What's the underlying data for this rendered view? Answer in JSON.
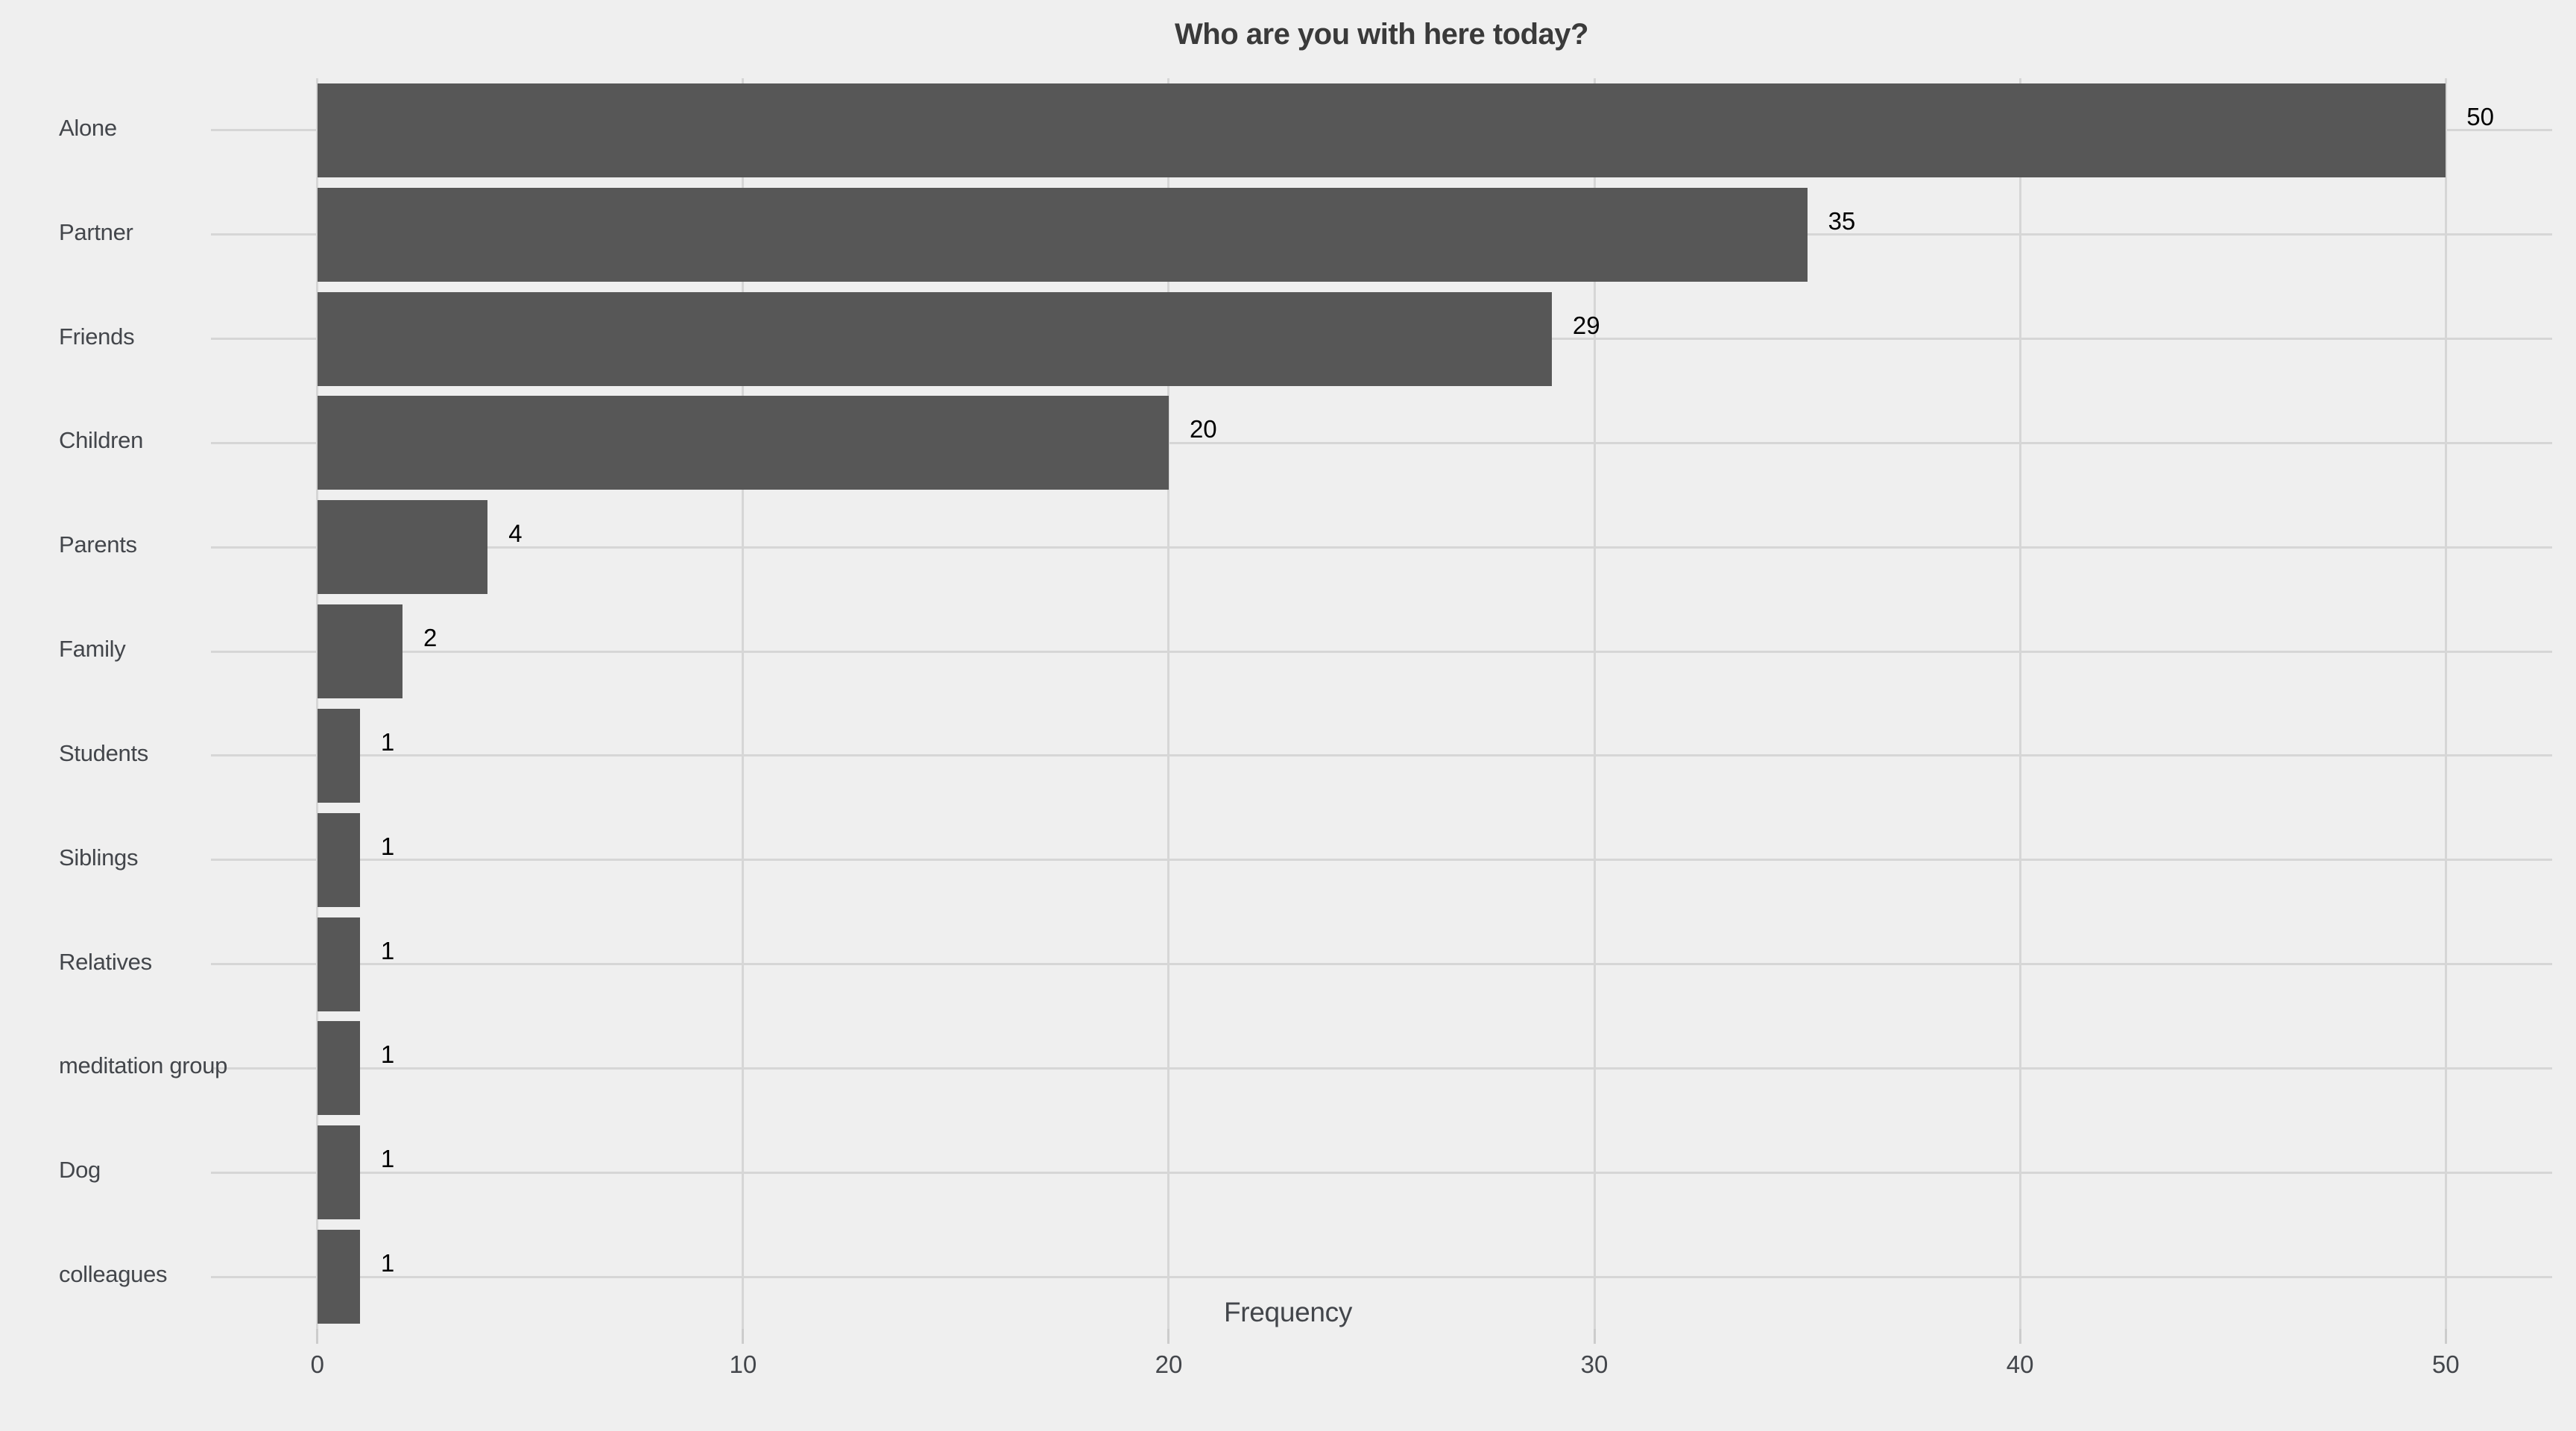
{
  "chart_data": {
    "type": "bar",
    "orientation": "horizontal",
    "title": "Who are you with here today?",
    "xlabel": "Frequency",
    "ylabel": "",
    "categories": [
      "Alone",
      "Partner",
      "Friends",
      "Children",
      "Parents",
      "Family",
      "Students",
      "Siblings",
      "Relatives",
      "meditation group",
      "Dog",
      "colleagues"
    ],
    "values": [
      50,
      35,
      29,
      20,
      4,
      2,
      1,
      1,
      1,
      1,
      1,
      1
    ],
    "xticks": [
      0,
      10,
      20,
      30,
      40,
      50
    ],
    "xlim": [
      -2.5,
      52.5
    ],
    "grid": true,
    "legend": "none",
    "colors": {
      "background": "#efefef",
      "bar": "#575757",
      "gridline": "#d6d6d6",
      "tick_mark": "#cccccc",
      "title_text": "#3a3a3a",
      "label_text": "#43464b",
      "value_text": "#000000"
    }
  }
}
